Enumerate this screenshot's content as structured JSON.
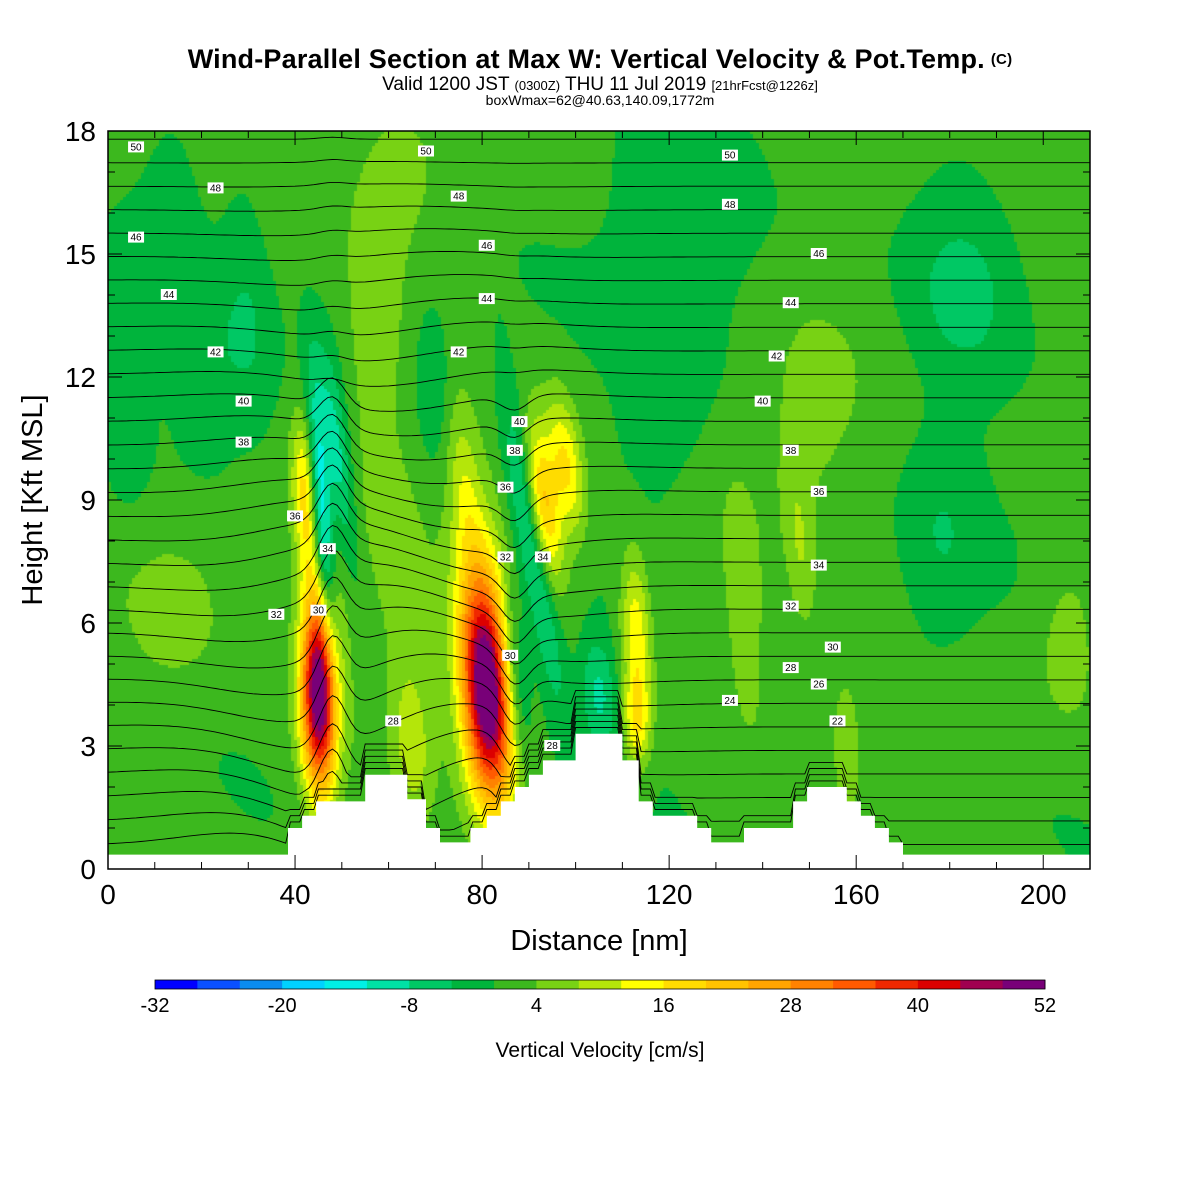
{
  "title": {
    "main": "Wind-Parallel Section at Max W: Vertical Velocity & Pot.Temp.",
    "copyright": "(C)",
    "valid_prefix": "Valid 1200 JST",
    "valid_z": "(0300Z)",
    "valid_date": "THU 11 Jul 2019",
    "valid_fcst": "[21hrFcst@1226z]",
    "box": "boxWmax=62@40.63,140.09,1772m"
  },
  "colors": {
    "background_green": "#3cb81e",
    "contour": "#000000",
    "terrain": "#ffffff"
  },
  "chart_data": {
    "type": "heatmap",
    "xlabel": "Distance [nm]",
    "ylabel": "Height [Kft MSL]",
    "xlim": [
      0,
      210
    ],
    "ylim": [
      0,
      18
    ],
    "x_ticks": [
      "0",
      "40",
      "80",
      "120",
      "160",
      "200"
    ],
    "y_ticks": [
      "0",
      "3",
      "6",
      "9",
      "12",
      "15",
      "18"
    ],
    "colorbar": {
      "label": "Vertical Velocity [cm/s]",
      "ticks": [
        "-32",
        "-20",
        "-8",
        "4",
        "16",
        "28",
        "40",
        "52"
      ],
      "levels": [
        -32,
        -28,
        -24,
        -20,
        -16,
        -12,
        -8,
        -4,
        0,
        4,
        8,
        12,
        16,
        20,
        24,
        28,
        32,
        36,
        40,
        44,
        48,
        52
      ],
      "colors": [
        "#0000ff",
        "#0a50ff",
        "#0a8cf0",
        "#00d2ff",
        "#00f0e6",
        "#00e1a5",
        "#00c864",
        "#00b43c",
        "#3cb81e",
        "#78d214",
        "#b4e60a",
        "#ffff00",
        "#ffdc00",
        "#ffc300",
        "#ffa500",
        "#ff8200",
        "#ff5a00",
        "#f02800",
        "#dc0000",
        "#a00050",
        "#780078"
      ]
    },
    "terrain_kft": [
      [
        0,
        0.35
      ],
      [
        38.5,
        0.35
      ],
      [
        38.5,
        1.0
      ],
      [
        41.5,
        1.0
      ],
      [
        41.5,
        1.3
      ],
      [
        44.5,
        1.3
      ],
      [
        44.5,
        1.65
      ],
      [
        55,
        1.65
      ],
      [
        55,
        2.3
      ],
      [
        64,
        2.3
      ],
      [
        64,
        1.7
      ],
      [
        68,
        1.7
      ],
      [
        68,
        1.0
      ],
      [
        71,
        1.0
      ],
      [
        71,
        0.65
      ],
      [
        77.5,
        0.65
      ],
      [
        77.5,
        1.0
      ],
      [
        81,
        1.0
      ],
      [
        81,
        1.3
      ],
      [
        84,
        1.3
      ],
      [
        84,
        1.65
      ],
      [
        87,
        1.65
      ],
      [
        87,
        2.0
      ],
      [
        90,
        2.0
      ],
      [
        90,
        2.3
      ],
      [
        93,
        2.3
      ],
      [
        93,
        2.65
      ],
      [
        100,
        2.65
      ],
      [
        100,
        3.3
      ],
      [
        110,
        3.3
      ],
      [
        110,
        2.65
      ],
      [
        113.5,
        2.65
      ],
      [
        113.5,
        1.65
      ],
      [
        116.5,
        1.65
      ],
      [
        116.5,
        1.3
      ],
      [
        126,
        1.3
      ],
      [
        126,
        1.0
      ],
      [
        129,
        1.0
      ],
      [
        129,
        0.65
      ],
      [
        136,
        0.65
      ],
      [
        136,
        1.0
      ],
      [
        146.5,
        1.0
      ],
      [
        146.5,
        1.65
      ],
      [
        149.5,
        1.65
      ],
      [
        149.5,
        2.0
      ],
      [
        158,
        2.0
      ],
      [
        158,
        1.65
      ],
      [
        161,
        1.65
      ],
      [
        161,
        1.3
      ],
      [
        164,
        1.3
      ],
      [
        164,
        1.0
      ],
      [
        167,
        1.0
      ],
      [
        167,
        0.65
      ],
      [
        170,
        0.65
      ],
      [
        170,
        0.35
      ],
      [
        210,
        0.35
      ]
    ],
    "w_features": [
      {
        "x": 45,
        "y": 4.2,
        "sx": 2.6,
        "sy": 1.6,
        "amp": 42,
        "tilt": 0.1
      },
      {
        "x": 46,
        "y": 5.5,
        "sx": 3.2,
        "sy": 2.4,
        "amp": 14,
        "tilt": 0.1
      },
      {
        "x": 81,
        "y": 4.3,
        "sx": 3.6,
        "sy": 1.8,
        "amp": 44,
        "tilt": 0.5
      },
      {
        "x": 81,
        "y": 5.0,
        "sx": 4.8,
        "sy": 2.8,
        "amp": 14,
        "tilt": 0.5
      },
      {
        "x": 42,
        "y": 9.2,
        "sx": 1.8,
        "sy": 1.3,
        "amp": 15,
        "tilt": 0.3
      },
      {
        "x": 46,
        "y": 8.2,
        "sx": 1.6,
        "sy": 2.4,
        "amp": -22,
        "tilt": 0.6
      },
      {
        "x": 49,
        "y": 10.0,
        "sx": 2.0,
        "sy": 1.8,
        "amp": -12,
        "tilt": 1.0
      },
      {
        "x": 91,
        "y": 7.8,
        "sx": 2.4,
        "sy": 2.6,
        "amp": -14,
        "tilt": 1.4
      },
      {
        "x": 87,
        "y": 4.8,
        "sx": 2.2,
        "sy": 1.6,
        "amp": -14,
        "tilt": 0.6
      },
      {
        "x": 93,
        "y": 8.8,
        "sx": 2.4,
        "sy": 1.4,
        "amp": 22,
        "tilt": 1.0
      },
      {
        "x": 98,
        "y": 9.8,
        "sx": 2.6,
        "sy": 1.2,
        "amp": 16,
        "tilt": 1.0
      },
      {
        "x": 76,
        "y": 9.4,
        "sx": 2.4,
        "sy": 1.6,
        "amp": 8,
        "tilt": 0.8
      },
      {
        "x": 62,
        "y": 7.5,
        "sx": 5.0,
        "sy": 3.0,
        "amp": 6,
        "tilt": 1.0
      },
      {
        "x": 65,
        "y": 3.0,
        "sx": 3.0,
        "sy": 1.4,
        "amp": 8,
        "tilt": 0.4
      },
      {
        "x": 113,
        "y": 5.8,
        "sx": 2.2,
        "sy": 1.4,
        "amp": 14,
        "tilt": 0.4
      },
      {
        "x": 113,
        "y": 3.6,
        "sx": 2.0,
        "sy": 0.8,
        "amp": 14,
        "tilt": 0.2
      },
      {
        "x": 105,
        "y": 4.3,
        "sx": 2.6,
        "sy": 1.0,
        "amp": -10,
        "tilt": 0.5
      },
      {
        "x": 136,
        "y": 6.5,
        "sx": 3.0,
        "sy": 2.0,
        "amp": 6,
        "tilt": 0.5
      },
      {
        "x": 158,
        "y": 3.2,
        "sx": 2.6,
        "sy": 1.4,
        "amp": 6,
        "tilt": 0.3
      },
      {
        "x": 148,
        "y": 7.8,
        "sx": 2.2,
        "sy": 1.6,
        "amp": 6,
        "tilt": 0.6
      },
      {
        "x": 205,
        "y": 5.5,
        "sx": 5.0,
        "sy": 1.6,
        "amp": 5,
        "tilt": 0.0
      },
      {
        "x": 183,
        "y": 14.2,
        "sx": 8.0,
        "sy": 1.6,
        "amp": -6,
        "tilt": 0.0
      },
      {
        "x": 14,
        "y": 15.2,
        "sx": 5.0,
        "sy": 2.0,
        "amp": -4,
        "tilt": 0.0
      },
      {
        "x": 30,
        "y": 13.5,
        "sx": 4.0,
        "sy": 2.2,
        "amp": -5,
        "tilt": 0.6
      },
      {
        "x": 22,
        "y": 12.0,
        "sx": 5.0,
        "sy": 1.5,
        "amp": -4,
        "tilt": 0.3
      },
      {
        "x": 4,
        "y": 11.5,
        "sx": 3.0,
        "sy": 1.5,
        "amp": -5,
        "tilt": 0.0
      },
      {
        "x": 57,
        "y": 13.0,
        "sx": 4.0,
        "sy": 2.0,
        "amp": 5,
        "tilt": 0.0
      },
      {
        "x": 70,
        "y": 12.0,
        "sx": 3.0,
        "sy": 1.5,
        "amp": -5,
        "tilt": 0.5
      },
      {
        "x": 15,
        "y": 6.5,
        "sx": 8.0,
        "sy": 1.5,
        "amp": 5,
        "tilt": 0.0
      },
      {
        "x": 150,
        "y": 11.0,
        "sx": 8.0,
        "sy": 2.0,
        "amp": 5,
        "tilt": 0.0
      },
      {
        "x": 118,
        "y": 11.0,
        "sx": 6.0,
        "sy": 1.5,
        "amp": -4,
        "tilt": 0.0
      },
      {
        "x": 178,
        "y": 8.0,
        "sx": 6.0,
        "sy": 2.0,
        "amp": -5,
        "tilt": 0.0
      },
      {
        "x": 120,
        "y": 15.5,
        "sx": 10.0,
        "sy": 2.0,
        "amp": -5,
        "tilt": 0.0
      },
      {
        "x": 60,
        "y": 16.5,
        "sx": 10.0,
        "sy": 1.5,
        "amp": 4,
        "tilt": 0.0
      }
    ],
    "theta_contours": [
      {
        "value": 22,
        "label": "22",
        "label_at": [
          156,
          3.6
        ]
      },
      {
        "value": 24,
        "label": "24",
        "label_at": [
          133,
          4.1
        ]
      },
      {
        "value": 26,
        "label": "26",
        "label_at": [
          152,
          4.5
        ]
      },
      {
        "value": 28,
        "label": "28",
        "label_at": [
          61,
          3.6
        ]
      },
      {
        "value": 28,
        "label": "28",
        "label_at": [
          146,
          4.9
        ]
      },
      {
        "value": 28,
        "label": "28",
        "label_at": [
          95,
          3.0
        ]
      },
      {
        "value": 30,
        "label": "30",
        "label_at": [
          45,
          6.3
        ]
      },
      {
        "value": 30,
        "label": "30",
        "label_at": [
          86,
          5.2
        ]
      },
      {
        "value": 30,
        "label": "30",
        "label_at": [
          155,
          5.4
        ]
      },
      {
        "value": 32,
        "label": "32",
        "label_at": [
          36,
          6.2
        ]
      },
      {
        "value": 32,
        "label": "32",
        "label_at": [
          85,
          7.6
        ]
      },
      {
        "value": 32,
        "label": "32",
        "label_at": [
          146,
          6.4
        ]
      },
      {
        "value": 34,
        "label": "34",
        "label_at": [
          47,
          7.8
        ]
      },
      {
        "value": 34,
        "label": "34",
        "label_at": [
          93,
          7.6
        ]
      },
      {
        "value": 34,
        "label": "34",
        "label_at": [
          152,
          7.4
        ]
      },
      {
        "value": 36,
        "label": "36",
        "label_at": [
          40,
          8.6
        ]
      },
      {
        "value": 36,
        "label": "36",
        "label_at": [
          85,
          9.3
        ]
      },
      {
        "value": 36,
        "label": "36",
        "label_at": [
          152,
          9.2
        ]
      },
      {
        "value": 38,
        "label": "38",
        "label_at": [
          29,
          10.4
        ]
      },
      {
        "value": 38,
        "label": "38",
        "label_at": [
          87,
          10.2
        ]
      },
      {
        "value": 38,
        "label": "38",
        "label_at": [
          146,
          10.2
        ]
      },
      {
        "value": 40,
        "label": "40",
        "label_at": [
          29,
          11.4
        ]
      },
      {
        "value": 40,
        "label": "40",
        "label_at": [
          88,
          10.9
        ]
      },
      {
        "value": 40,
        "label": "40",
        "label_at": [
          140,
          11.4
        ]
      },
      {
        "value": 42,
        "label": "42",
        "label_at": [
          23,
          12.6
        ]
      },
      {
        "value": 42,
        "label": "42",
        "label_at": [
          75,
          12.6
        ]
      },
      {
        "value": 42,
        "label": "42",
        "label_at": [
          143,
          12.5
        ]
      },
      {
        "value": 44,
        "label": "44",
        "label_at": [
          13,
          14.0
        ]
      },
      {
        "value": 44,
        "label": "44",
        "label_at": [
          81,
          13.9
        ]
      },
      {
        "value": 44,
        "label": "44",
        "label_at": [
          146,
          13.8
        ]
      },
      {
        "value": 46,
        "label": "46",
        "label_at": [
          6,
          15.4
        ]
      },
      {
        "value": 46,
        "label": "46",
        "label_at": [
          81,
          15.2
        ]
      },
      {
        "value": 46,
        "label": "46",
        "label_at": [
          152,
          15.0
        ]
      },
      {
        "value": 48,
        "label": "48",
        "label_at": [
          23,
          16.6
        ]
      },
      {
        "value": 48,
        "label": "48",
        "label_at": [
          75,
          16.4
        ]
      },
      {
        "value": 48,
        "label": "48",
        "label_at": [
          133,
          16.2
        ]
      },
      {
        "value": 50,
        "label": "50",
        "label_at": [
          6,
          17.6
        ]
      },
      {
        "value": 50,
        "label": "50",
        "label_at": [
          68,
          17.5
        ]
      },
      {
        "value": 50,
        "label": "50",
        "label_at": [
          133,
          17.4
        ]
      }
    ]
  }
}
